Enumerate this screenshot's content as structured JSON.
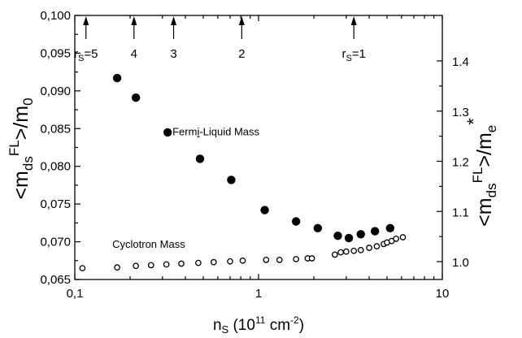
{
  "chart_data": {
    "type": "scatter",
    "x_scale": "log",
    "xlim": [
      0.1,
      10
    ],
    "ylim_left": [
      0.065,
      0.1
    ],
    "ylim_right_range_from_ticks": [
      1.0,
      1.4
    ],
    "x_ticks": [
      {
        "value": 0.1,
        "label": "0,1"
      },
      {
        "value": 1,
        "label": "1"
      },
      {
        "value": 10,
        "label": "10"
      }
    ],
    "y_left_ticks": [
      {
        "value": 0.065,
        "label": "0,065"
      },
      {
        "value": 0.07,
        "label": "0,070"
      },
      {
        "value": 0.075,
        "label": "0,075"
      },
      {
        "value": 0.08,
        "label": "0,080"
      },
      {
        "value": 0.085,
        "label": "0,085"
      },
      {
        "value": 0.09,
        "label": "0,090"
      },
      {
        "value": 0.095,
        "label": "0,095"
      },
      {
        "value": 0.1,
        "label": "0,100"
      }
    ],
    "y_right_ticks": [
      {
        "value": 1.0,
        "label": "1.0"
      },
      {
        "value": 1.1,
        "label": "1.1"
      },
      {
        "value": 1.2,
        "label": "1.2"
      },
      {
        "value": 1.3,
        "label": "1.3"
      },
      {
        "value": 1.4,
        "label": "1.4"
      }
    ],
    "xlabel": {
      "prefix": "n",
      "sub": "S",
      "middle": " (10",
      "sup": "11",
      "suffix": " cm",
      "sup2": "-2",
      "end": ")"
    },
    "ylabel_left": {
      "open": "<m",
      "sub": "ds",
      "sup": "FL",
      "close": ">/m",
      "sub2": "0"
    },
    "ylabel_right": {
      "open": "<m",
      "sub": "ds",
      "sup": "FL",
      "close": ">/m",
      "sub2": "e",
      "star": "*"
    },
    "rs_markers": [
      {
        "n": 0.115,
        "prefix": "r",
        "sub": "S",
        "suffix": "=5"
      },
      {
        "n": 0.21,
        "prefix": "",
        "sub": "",
        "suffix": "4"
      },
      {
        "n": 0.345,
        "prefix": "",
        "sub": "",
        "suffix": "3"
      },
      {
        "n": 0.81,
        "prefix": "",
        "sub": "",
        "suffix": "2"
      },
      {
        "n": 3.3,
        "prefix": "r",
        "sub": "S",
        "suffix": "=1"
      }
    ],
    "annotations": [
      {
        "prefix": "Ferm",
        "underlined": "i",
        "suffix": "-Liquid Mass",
        "n": 0.34,
        "y": 0.0841
      },
      {
        "prefix": "Cyclotron Mass",
        "underlined": "",
        "suffix": "",
        "n": 0.16,
        "y": 0.0692
      }
    ],
    "series": [
      {
        "style": "filled",
        "points": [
          [
            0.17,
            0.0917
          ],
          [
            0.215,
            0.0891
          ],
          [
            0.32,
            0.0845
          ],
          [
            0.48,
            0.081
          ],
          [
            0.71,
            0.0782
          ],
          [
            1.08,
            0.0742
          ],
          [
            1.6,
            0.0727
          ],
          [
            2.1,
            0.0718
          ],
          [
            2.7,
            0.0708
          ],
          [
            3.1,
            0.0705
          ],
          [
            3.6,
            0.071
          ],
          [
            4.3,
            0.0714
          ],
          [
            5.2,
            0.0718
          ]
        ]
      },
      {
        "style": "open",
        "points": [
          [
            0.11,
            0.0665
          ],
          [
            0.17,
            0.0666
          ],
          [
            0.215,
            0.0668
          ],
          [
            0.26,
            0.0669
          ],
          [
            0.315,
            0.067
          ],
          [
            0.38,
            0.0671
          ],
          [
            0.47,
            0.0672
          ],
          [
            0.57,
            0.0673
          ],
          [
            0.7,
            0.0674
          ],
          [
            0.82,
            0.0675
          ],
          [
            1.1,
            0.0676
          ],
          [
            1.3,
            0.0676
          ],
          [
            1.6,
            0.0677
          ],
          [
            1.85,
            0.0678
          ],
          [
            1.95,
            0.0678
          ],
          [
            2.6,
            0.0683
          ],
          [
            2.8,
            0.0686
          ],
          [
            3.0,
            0.0687
          ],
          [
            3.3,
            0.0688
          ],
          [
            3.6,
            0.0689
          ],
          [
            4.0,
            0.0692
          ],
          [
            4.4,
            0.0694
          ],
          [
            4.8,
            0.0697
          ],
          [
            5.0,
            0.0699
          ],
          [
            5.3,
            0.0701
          ],
          [
            5.6,
            0.0704
          ],
          [
            6.1,
            0.0706
          ]
        ]
      }
    ]
  }
}
